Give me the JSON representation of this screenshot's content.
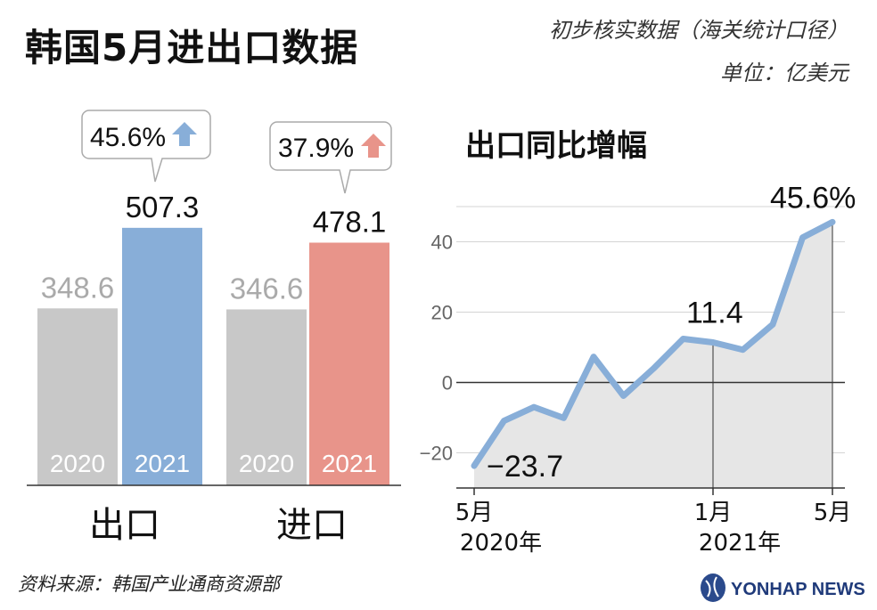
{
  "title": "韩国5月进出口数据",
  "note": "初步核实数据（海关统计口径）",
  "unit": "单位：亿美元",
  "source": "资料来源：韩国产业通商资源部",
  "logo_text": "YONHAP NEWS",
  "colors": {
    "bar_2020": "#c8c8c8",
    "export_2021": "#88aed8",
    "import_2021": "#e8948a",
    "line": "#88aed8",
    "area": "#e6e6e6",
    "axis": "#333333"
  },
  "chart_data": [
    {
      "type": "bar",
      "categories": [
        "出口",
        "进口"
      ],
      "series": [
        {
          "name": "2020",
          "values": [
            348.6,
            346.6
          ]
        },
        {
          "name": "2021",
          "values": [
            507.3,
            478.1
          ]
        }
      ],
      "value_labels": {
        "2020": [
          "348.6",
          "346.6"
        ],
        "2021": [
          "507.3",
          "478.1"
        ]
      },
      "callouts": [
        "45.6%",
        "37.9%"
      ],
      "growth_pct": [
        45.6,
        37.9
      ]
    },
    {
      "type": "line",
      "title": "出口同比增幅",
      "x": [
        "2020-05",
        "2020-06",
        "2020-07",
        "2020-08",
        "2020-09",
        "2020-10",
        "2020-11",
        "2020-12",
        "2021-01",
        "2021-02",
        "2021-03",
        "2021-04",
        "2021-05"
      ],
      "values": [
        -23.7,
        -10.9,
        -7.0,
        -10.1,
        7.3,
        -3.8,
        3.9,
        12.4,
        11.4,
        9.3,
        16.5,
        41.2,
        45.6
      ],
      "ylim": [
        -30,
        50
      ],
      "yticks": [
        -20,
        0,
        20,
        40
      ],
      "ytick_labels": [
        "−20",
        "0",
        "20",
        "40"
      ],
      "xtick_labels": [
        {
          "month": "5月",
          "year": "2020年"
        },
        {
          "month": "1月",
          "year": "2021年"
        },
        {
          "month": "5月",
          "year": ""
        }
      ],
      "annotations": [
        "−23.7",
        "11.4",
        "45.6%"
      ]
    }
  ]
}
